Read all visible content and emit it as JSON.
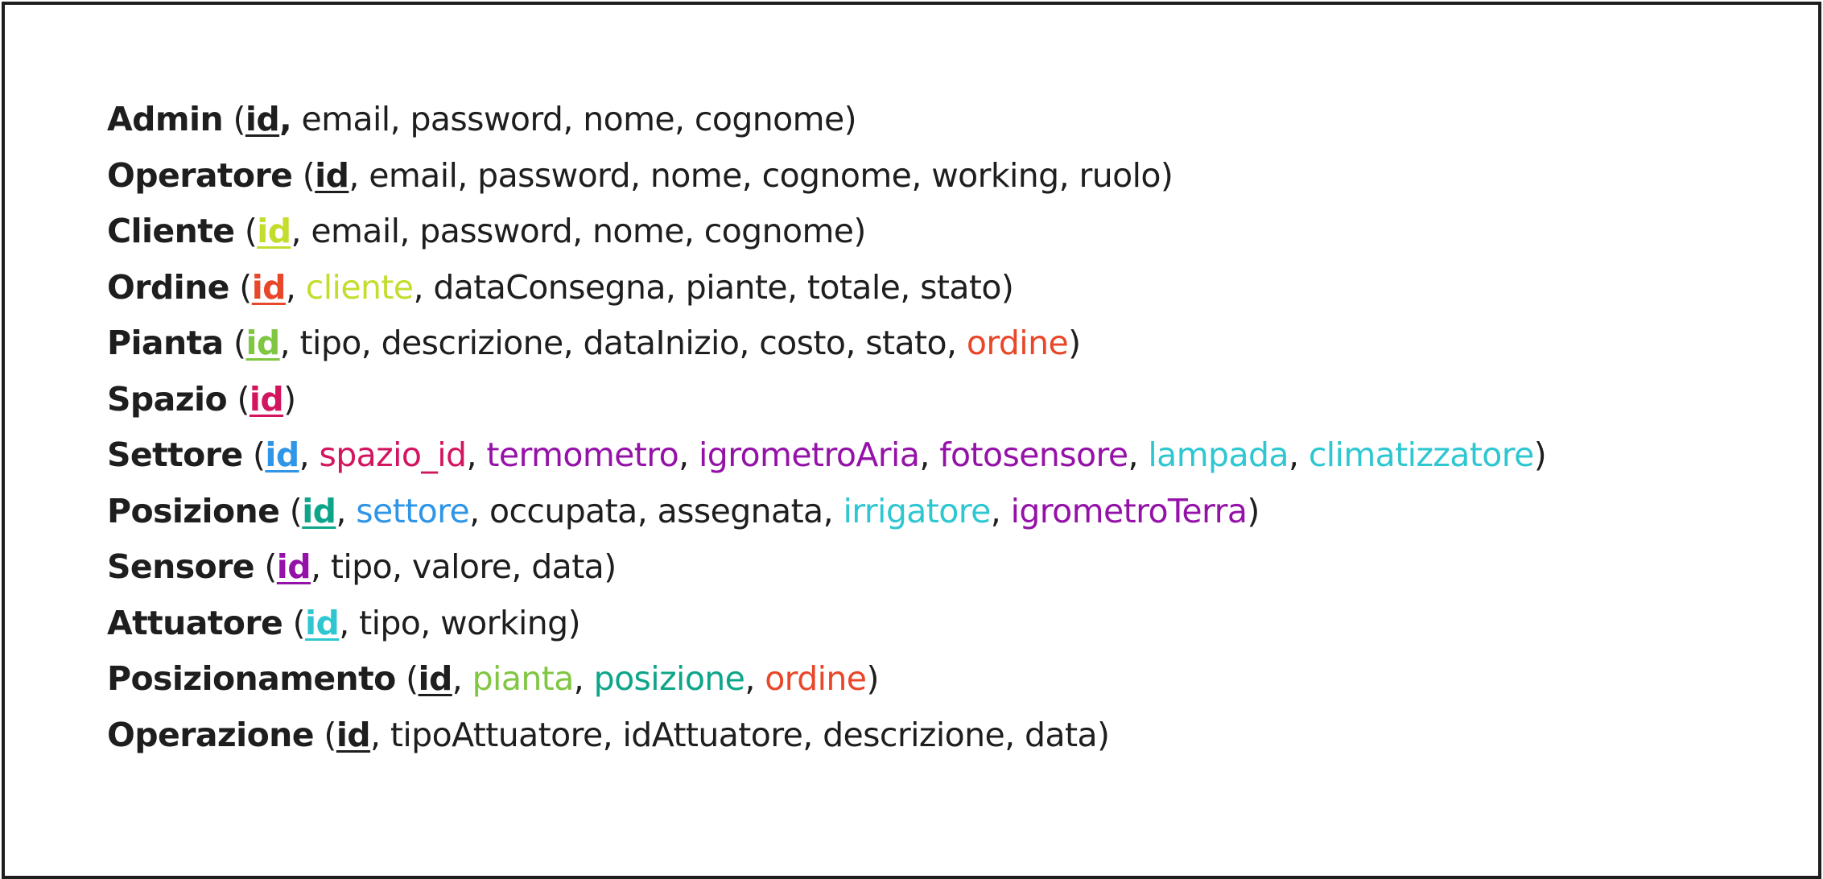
{
  "colors": {
    "default": "#1e1e1e",
    "yellow_green": "#c4dd2c",
    "red_orange": "#e8472a",
    "light_green": "#7fc641",
    "crimson": "#d3145e",
    "blue": "#2f95e6",
    "purple": "#9512a8",
    "cyan": "#2ec7d1",
    "teal": "#0da58a"
  },
  "entities": [
    {
      "name": "Admin",
      "fields": [
        {
          "text": "id",
          "pk": true,
          "color": "#1e1e1e"
        },
        {
          "text": "email"
        },
        {
          "text": "password"
        },
        {
          "text": "nome"
        },
        {
          "text": "cognome"
        }
      ]
    },
    {
      "name": "Operatore",
      "fields": [
        {
          "text": "id",
          "pk": true,
          "color": "#1e1e1e"
        },
        {
          "text": "email"
        },
        {
          "text": "password"
        },
        {
          "text": "nome"
        },
        {
          "text": "cognome"
        },
        {
          "text": "working"
        },
        {
          "text": "ruolo"
        }
      ]
    },
    {
      "name": "Cliente",
      "fields": [
        {
          "text": "id",
          "pk": true,
          "color": "#c4dd2c"
        },
        {
          "text": "email"
        },
        {
          "text": "password"
        },
        {
          "text": "nome"
        },
        {
          "text": "cognome"
        }
      ]
    },
    {
      "name": "Ordine",
      "fields": [
        {
          "text": "id",
          "pk": true,
          "color": "#e8472a"
        },
        {
          "text": "cliente",
          "color": "#c4dd2c"
        },
        {
          "text": "dataConsegna"
        },
        {
          "text": "piante"
        },
        {
          "text": "totale"
        },
        {
          "text": "stato"
        }
      ]
    },
    {
      "name": "Pianta",
      "fields": [
        {
          "text": "id",
          "pk": true,
          "color": "#7fc641"
        },
        {
          "text": "tipo"
        },
        {
          "text": "descrizione"
        },
        {
          "text": "dataInizio"
        },
        {
          "text": "costo"
        },
        {
          "text": "stato"
        },
        {
          "text": "ordine",
          "color": "#e8472a"
        }
      ]
    },
    {
      "name": "Spazio",
      "fields": [
        {
          "text": "id",
          "pk": true,
          "color": "#d3145e"
        }
      ]
    },
    {
      "name": "Settore",
      "fields": [
        {
          "text": "id",
          "pk": true,
          "color": "#2f95e6"
        },
        {
          "text": "spazio_id",
          "color": "#d3145e"
        },
        {
          "text": "termometro",
          "color": "#9512a8"
        },
        {
          "text": "igrometroAria",
          "color": "#9512a8"
        },
        {
          "text": "fotosensore",
          "color": "#9512a8"
        },
        {
          "text": "lampada",
          "color": "#2ec7d1"
        },
        {
          "text": "climatizzatore",
          "color": "#2ec7d1"
        }
      ]
    },
    {
      "name": "Posizione",
      "fields": [
        {
          "text": "id",
          "pk": true,
          "color": "#0da58a"
        },
        {
          "text": "settore",
          "color": "#2f95e6"
        },
        {
          "text": "occupata"
        },
        {
          "text": "assegnata"
        },
        {
          "text": "irrigatore",
          "color": "#2ec7d1"
        },
        {
          "text": "igrometroTerra",
          "color": "#9512a8"
        }
      ]
    },
    {
      "name": "Sensore",
      "fields": [
        {
          "text": "id",
          "pk": true,
          "color": "#9512a8"
        },
        {
          "text": "tipo"
        },
        {
          "text": "valore"
        },
        {
          "text": "data"
        }
      ]
    },
    {
      "name": "Attuatore",
      "fields": [
        {
          "text": "id",
          "pk": true,
          "color": "#2ec7d1"
        },
        {
          "text": "tipo"
        },
        {
          "text": "working"
        }
      ]
    },
    {
      "name": "Posizionamento",
      "fields": [
        {
          "text": "id",
          "pk": true,
          "color": "#1e1e1e"
        },
        {
          "text": "pianta",
          "color": "#7fc641"
        },
        {
          "text": "posizione",
          "color": "#0da58a"
        },
        {
          "text": "ordine",
          "color": "#e8472a"
        }
      ]
    },
    {
      "name": "Operazione",
      "fields": [
        {
          "text": "id",
          "pk": true,
          "color": "#1e1e1e"
        },
        {
          "text": "tipoAttuatore"
        },
        {
          "text": "idAttuatore"
        },
        {
          "text": "descrizione"
        },
        {
          "text": "data"
        }
      ]
    }
  ]
}
